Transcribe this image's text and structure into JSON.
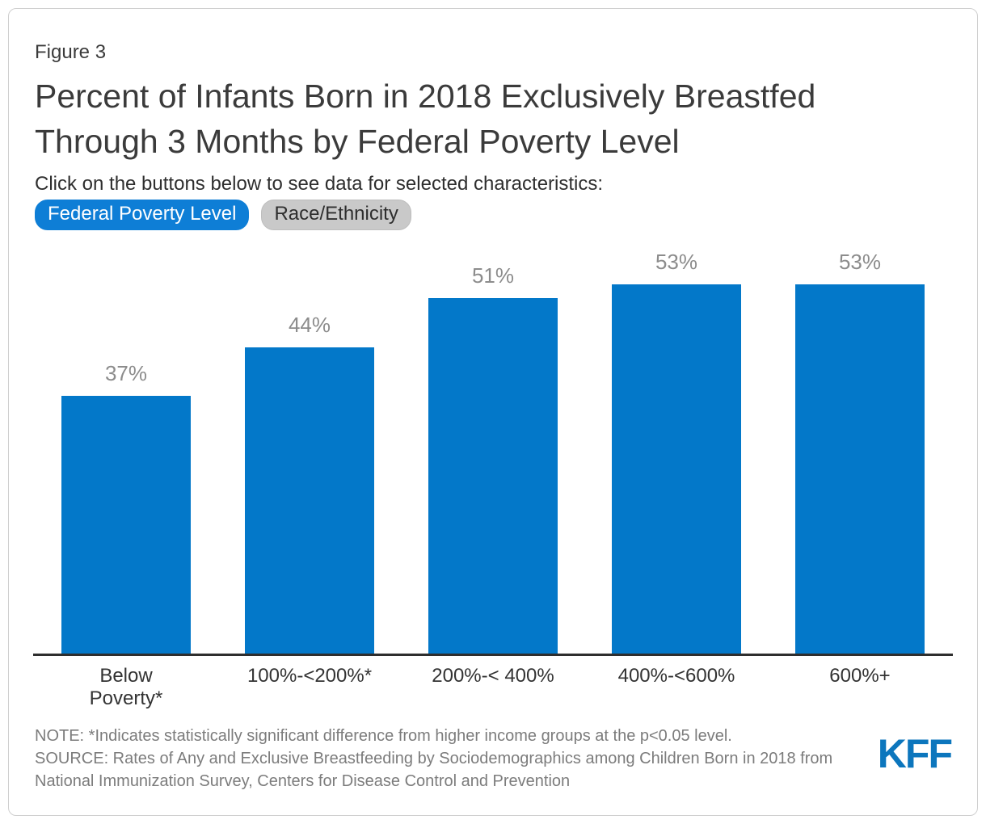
{
  "figure_label": "Figure 3",
  "header": {
    "title_lines": [
      "Percent of Infants Born in 2018 Exclusively Breastfed",
      "Through 3 Months by Federal Poverty Level"
    ],
    "subtitle": "Click on the buttons below to see data for selected characteristics:"
  },
  "buttons": [
    {
      "label": "Federal Poverty Level",
      "active": true
    },
    {
      "label": "Race/Ethnicity",
      "active": false
    }
  ],
  "chart_data": {
    "type": "bar",
    "title": "Percent of Infants Born in 2018 Exclusively Breastfed Through 3 Months by Federal Poverty Level",
    "categories": [
      "Below Poverty*",
      "100%-<200%*",
      "200%-< 400%",
      "400%-<600%",
      "600%+"
    ],
    "values": [
      37,
      44,
      51,
      53,
      53
    ],
    "value_labels": [
      "37%",
      "44%",
      "51%",
      "53%",
      "53%"
    ],
    "xlabel": "",
    "ylabel": "",
    "ylim": [
      0,
      60
    ],
    "grid": false,
    "legend": false,
    "bar_color": "#0378c9",
    "value_label_color": "#8c8c8c"
  },
  "footer": {
    "note": "NOTE: *Indicates statistically significant difference from higher income groups at the p<0.05 level.",
    "source": "SOURCE: Rates of Any and Exclusive Breastfeeding by Sociodemographics among Children Born in 2018 from National Immunization Survey, Centers for Disease Control and Prevention",
    "logo_text": "KFF"
  },
  "colors": {
    "accent_blue": "#0378c9",
    "button_active_bg": "#0e7ed6",
    "button_inactive_bg": "#c9c9c9",
    "logo_blue": "#0c76bd",
    "axis": "#2e2e2e"
  }
}
